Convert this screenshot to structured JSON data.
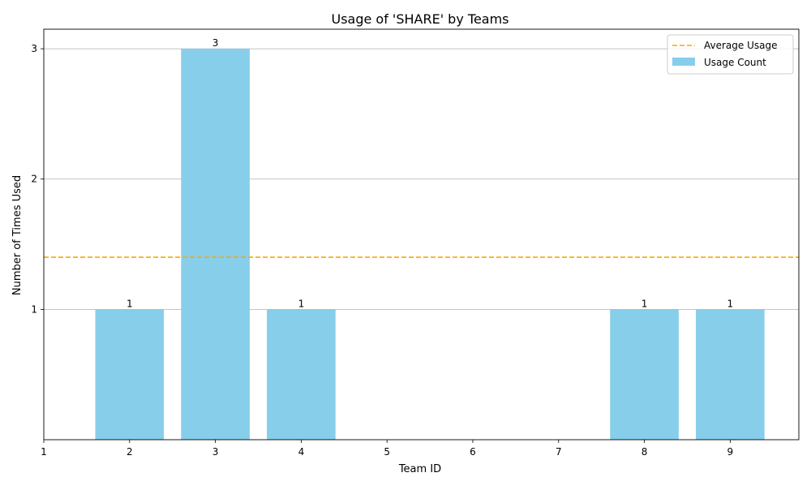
{
  "chart_data": {
    "type": "bar",
    "title": "Usage of 'SHARE' by Teams",
    "xlabel": "Team ID",
    "ylabel": "Number of Times Used",
    "x_ticks": [
      1,
      2,
      3,
      4,
      5,
      6,
      7,
      8,
      9
    ],
    "y_ticks": [
      1,
      2,
      3
    ],
    "xlim": [
      1,
      9.8
    ],
    "ylim": [
      0,
      3.15
    ],
    "grid": "y-major",
    "legend_position": "top-right",
    "series": [
      {
        "name": "Usage Count",
        "kind": "bar",
        "color": "#87ceeb",
        "x": [
          2,
          3,
          4,
          8,
          9
        ],
        "values": [
          1,
          3,
          1,
          1,
          1
        ],
        "data_labels": [
          "1",
          "3",
          "1",
          "1",
          "1"
        ]
      },
      {
        "name": "Average Usage",
        "kind": "hline",
        "color": "#ffa500",
        "linestyle": "dashed",
        "value": 1.4
      }
    ]
  }
}
